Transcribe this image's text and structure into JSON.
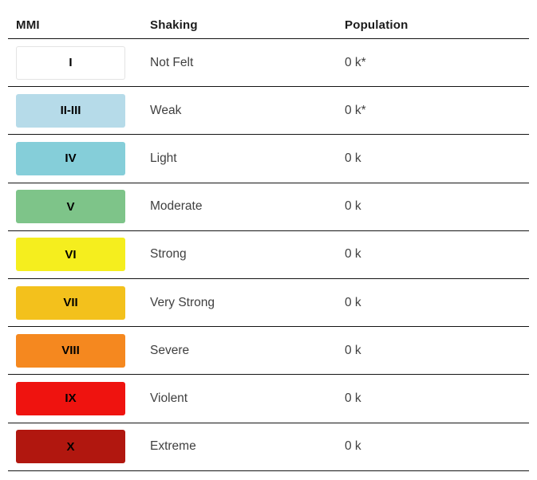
{
  "table": {
    "columns": {
      "mmi": "MMI",
      "shaking": "Shaking",
      "population": "Population"
    },
    "rows": [
      {
        "mmi": "I",
        "shaking": "Not Felt",
        "population": "0 k*",
        "color": "#ffffff"
      },
      {
        "mmi": "II-III",
        "shaking": "Weak",
        "population": "0 k*",
        "color": "#b6dbe9"
      },
      {
        "mmi": "IV",
        "shaking": "Light",
        "population": "0 k",
        "color": "#85ced9"
      },
      {
        "mmi": "V",
        "shaking": "Moderate",
        "population": "0 k",
        "color": "#7ec489"
      },
      {
        "mmi": "VI",
        "shaking": "Strong",
        "population": "0 k",
        "color": "#f5ee1e"
      },
      {
        "mmi": "VII",
        "shaking": "Very Strong",
        "population": "0 k",
        "color": "#f3c11c"
      },
      {
        "mmi": "VIII",
        "shaking": "Severe",
        "population": "0 k",
        "color": "#f5881f"
      },
      {
        "mmi": "IX",
        "shaking": "Violent",
        "population": "0 k",
        "color": "#ef130f"
      },
      {
        "mmi": "X",
        "shaking": "Extreme",
        "population": "0 k",
        "color": "#b1170f"
      }
    ],
    "swatch_border_color_row_I": "#e3e3e3",
    "separator_color": "#141414"
  }
}
